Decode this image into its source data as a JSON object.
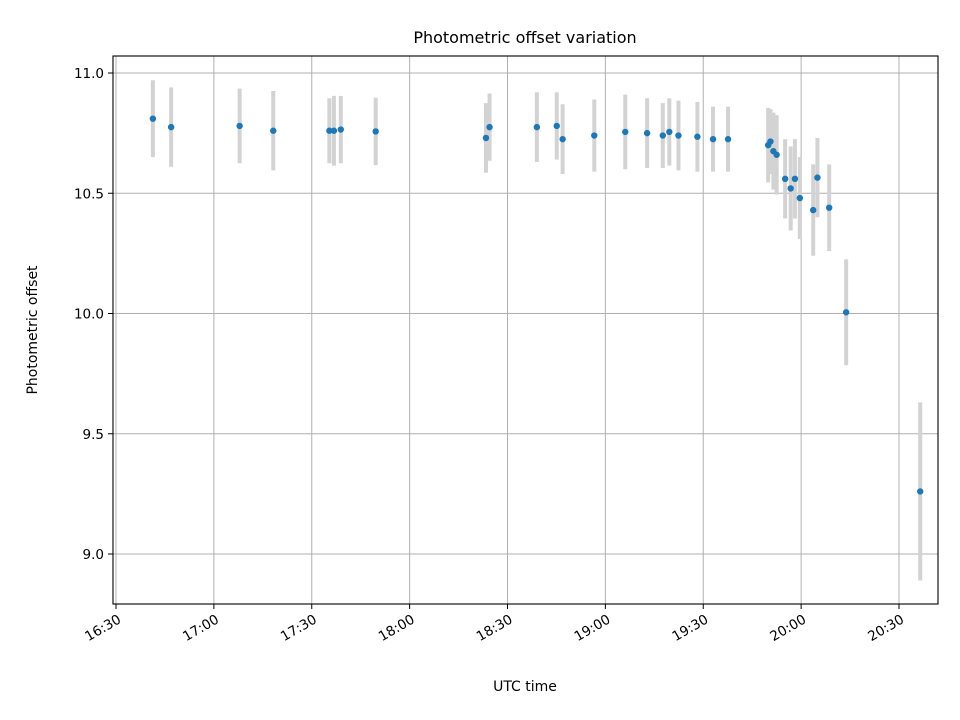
{
  "chart_data": {
    "type": "scatter",
    "title": "Photometric offset variation",
    "xlabel": "UTC time",
    "ylabel": "Photometric offset",
    "grid": true,
    "xlim": [
      990,
      1240
    ],
    "ylim": [
      8.8,
      11.07
    ],
    "x_unit": "minutes since 00:00 UTC",
    "x_ticks": [
      {
        "value": 990,
        "label": "16:30"
      },
      {
        "value": 1020,
        "label": "17:00"
      },
      {
        "value": 1050,
        "label": "17:30"
      },
      {
        "value": 1080,
        "label": "18:00"
      },
      {
        "value": 1110,
        "label": "18:30"
      },
      {
        "value": 1140,
        "label": "19:00"
      },
      {
        "value": 1170,
        "label": "19:30"
      },
      {
        "value": 1200,
        "label": "20:00"
      },
      {
        "value": 1230,
        "label": "20:30"
      }
    ],
    "y_ticks": [
      {
        "value": 9.0,
        "label": "9.0"
      },
      {
        "value": 9.5,
        "label": "9.5"
      },
      {
        "value": 10.0,
        "label": "10.0"
      },
      {
        "value": 10.5,
        "label": "10.5"
      },
      {
        "value": 11.0,
        "label": "11.0"
      }
    ],
    "marker_color": "#1f77b4",
    "errorbar_color": "#d3d3d3",
    "series": [
      {
        "name": "Photometric offset",
        "points": [
          {
            "x": 1001.3,
            "y": 10.81,
            "err": 0.16
          },
          {
            "x": 1006.9,
            "y": 10.775,
            "err": 0.165
          },
          {
            "x": 1027.9,
            "y": 10.78,
            "err": 0.155
          },
          {
            "x": 1038.2,
            "y": 10.76,
            "err": 0.165
          },
          {
            "x": 1055.4,
            "y": 10.76,
            "err": 0.135
          },
          {
            "x": 1056.8,
            "y": 10.76,
            "err": 0.145
          },
          {
            "x": 1058.9,
            "y": 10.765,
            "err": 0.14
          },
          {
            "x": 1069.6,
            "y": 10.757,
            "err": 0.14
          },
          {
            "x": 1103.4,
            "y": 10.73,
            "err": 0.145
          },
          {
            "x": 1104.5,
            "y": 10.775,
            "err": 0.14
          },
          {
            "x": 1119.0,
            "y": 10.775,
            "err": 0.145
          },
          {
            "x": 1125.1,
            "y": 10.78,
            "err": 0.14
          },
          {
            "x": 1126.9,
            "y": 10.725,
            "err": 0.145
          },
          {
            "x": 1136.6,
            "y": 10.74,
            "err": 0.15
          },
          {
            "x": 1146.1,
            "y": 10.755,
            "err": 0.155
          },
          {
            "x": 1152.8,
            "y": 10.75,
            "err": 0.145
          },
          {
            "x": 1157.6,
            "y": 10.74,
            "err": 0.135
          },
          {
            "x": 1159.6,
            "y": 10.755,
            "err": 0.14
          },
          {
            "x": 1162.4,
            "y": 10.74,
            "err": 0.145
          },
          {
            "x": 1168.2,
            "y": 10.735,
            "err": 0.145
          },
          {
            "x": 1173.0,
            "y": 10.725,
            "err": 0.135
          },
          {
            "x": 1177.6,
            "y": 10.725,
            "err": 0.135
          },
          {
            "x": 1189.9,
            "y": 10.7,
            "err": 0.155
          },
          {
            "x": 1190.6,
            "y": 10.715,
            "err": 0.135
          },
          {
            "x": 1191.5,
            "y": 10.675,
            "err": 0.16
          },
          {
            "x": 1192.5,
            "y": 10.66,
            "err": 0.165
          },
          {
            "x": 1195.1,
            "y": 10.56,
            "err": 0.165
          },
          {
            "x": 1196.8,
            "y": 10.52,
            "err": 0.175
          },
          {
            "x": 1198.1,
            "y": 10.56,
            "err": 0.165
          },
          {
            "x": 1199.6,
            "y": 10.48,
            "err": 0.17
          },
          {
            "x": 1203.7,
            "y": 10.43,
            "err": 0.19
          },
          {
            "x": 1205.0,
            "y": 10.565,
            "err": 0.165
          },
          {
            "x": 1208.6,
            "y": 10.44,
            "err": 0.18
          },
          {
            "x": 1213.8,
            "y": 10.005,
            "err": 0.22
          },
          {
            "x": 1236.5,
            "y": 9.26,
            "err": 0.37
          }
        ]
      }
    ]
  }
}
